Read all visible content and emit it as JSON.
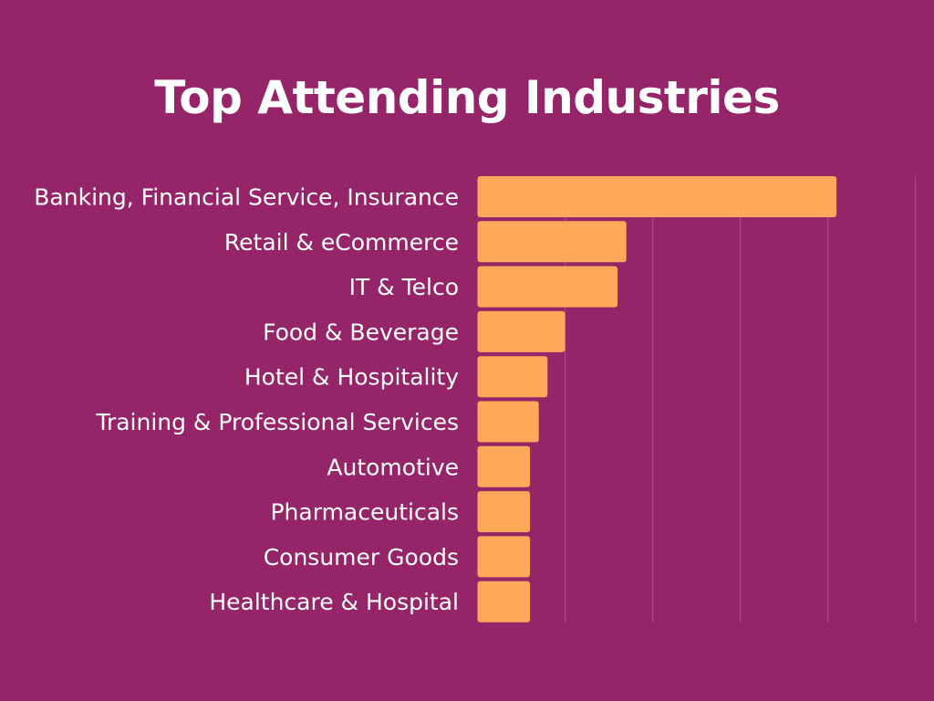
{
  "chart_data": {
    "type": "bar",
    "orientation": "horizontal",
    "title": "Top Attending Industries",
    "categories": [
      "Banking, Financial Service, Insurance",
      "Retail & eCommerce",
      "IT & Telco",
      "Food & Beverage",
      "Hotel & Hospitality",
      "Training & Professional Services",
      "Automotive",
      "Pharmaceuticals",
      "Consumer Goods",
      "Healthcare & Hospital"
    ],
    "values": [
      41,
      17,
      16,
      10,
      8,
      7,
      6,
      6,
      6,
      6
    ],
    "xlim": [
      0,
      50
    ],
    "grid": true,
    "gridlines": [
      0,
      10,
      20,
      30,
      40,
      50
    ],
    "xlabel": "",
    "ylabel": "",
    "colors": {
      "background": "#952468",
      "bar": "#FFA95A",
      "grid": "#A8478A",
      "text": "#FFFFFF"
    }
  }
}
